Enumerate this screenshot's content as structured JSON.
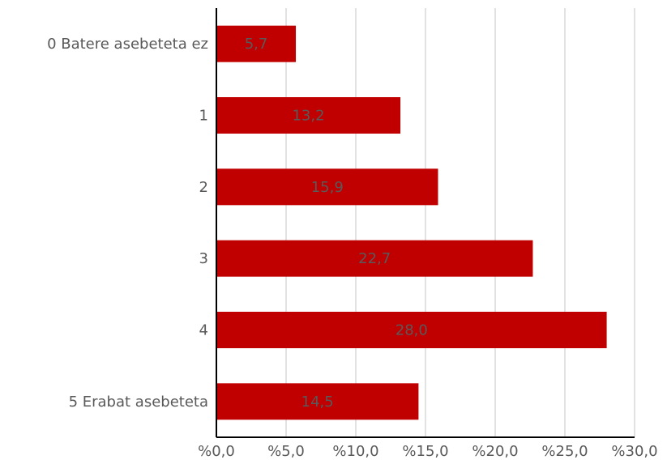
{
  "chart_data": {
    "type": "bar",
    "orientation": "horizontal",
    "title": "",
    "xlabel": "",
    "ylabel": "",
    "categories": [
      "0 Batere asebeteta ez",
      "1",
      "2",
      "3",
      "4",
      "5 Erabat asebeteta"
    ],
    "values": [
      5.7,
      13.2,
      15.9,
      22.7,
      28.0,
      14.5
    ],
    "data_labels": [
      "5,7",
      "13,2",
      "15,9",
      "22,7",
      "28,0",
      "14,5"
    ],
    "xlim": [
      0,
      30
    ],
    "x_ticks": [
      0,
      5,
      10,
      15,
      20,
      25,
      30
    ],
    "x_tick_labels": [
      "%0,0",
      "%5,0",
      "%10,0",
      "%15,0",
      "%20,0",
      "%25,0",
      "%30,0"
    ],
    "grid": "vertical",
    "legend": "none",
    "bar_color": "#c00000",
    "text_color": "#595959",
    "grid_color": "#d9d9d9"
  }
}
